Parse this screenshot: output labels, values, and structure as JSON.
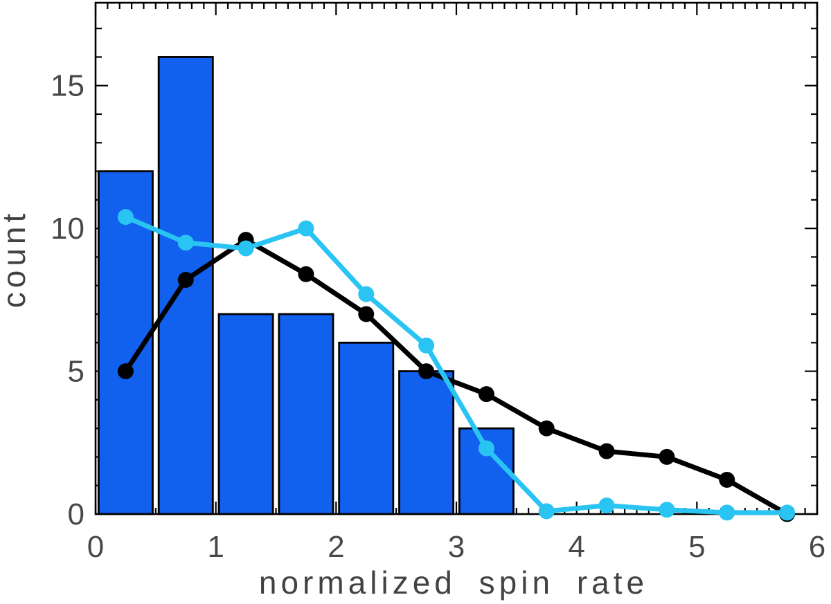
{
  "figure": {
    "background": "#ffffff",
    "frame_color": "#000000",
    "tick_color": "#000000",
    "label_color": "#484848"
  },
  "chart_data": {
    "type": "bar",
    "subtype": "histogram-with-line-overlays",
    "title": "",
    "xlabel": "normalized spin rate",
    "ylabel": "count",
    "xlim": [
      0,
      6
    ],
    "ylim": [
      0,
      17.9
    ],
    "grid": false,
    "legend": "none",
    "x_axis": {
      "major_ticks": [
        0,
        1,
        2,
        3,
        4,
        5,
        6
      ],
      "major_tick_labels": [
        "0",
        "1",
        "2",
        "3",
        "4",
        "5",
        "6"
      ],
      "minor_tick_step": 0.1
    },
    "y_axis": {
      "major_ticks": [
        0,
        5,
        10,
        15
      ],
      "major_tick_labels": [
        "0",
        "5",
        "10",
        "15"
      ],
      "minor_tick_step": 1
    },
    "histogram": {
      "bin_width": 0.5,
      "bin_centers": [
        0.25,
        0.75,
        1.25,
        1.75,
        2.25,
        2.75,
        3.25
      ],
      "counts": [
        12,
        16,
        7,
        7,
        6,
        5,
        3
      ],
      "bar_draw_width": 0.45,
      "fill_color": "#1160ee",
      "edge_color": "#000000"
    },
    "series": [
      {
        "name": "black-curve",
        "color": "#000000",
        "marker": "filled-circle",
        "x": [
          0.25,
          0.75,
          1.25,
          1.75,
          2.25,
          2.75,
          3.25,
          3.75,
          4.25,
          4.75,
          5.25,
          5.75
        ],
        "values": [
          5.0,
          8.2,
          9.6,
          8.4,
          7.0,
          5.0,
          4.2,
          3.0,
          2.2,
          2.0,
          1.2,
          0.0
        ]
      },
      {
        "name": "cyan-curve",
        "color": "#2ac4f3",
        "marker": "filled-circle",
        "x": [
          0.25,
          0.75,
          1.25,
          1.75,
          2.25,
          2.75,
          3.25,
          3.75,
          4.25,
          4.75,
          5.25,
          5.75
        ],
        "values": [
          10.4,
          9.5,
          9.3,
          10.0,
          7.7,
          5.9,
          2.3,
          0.1,
          0.3,
          0.15,
          0.05,
          0.05
        ]
      }
    ]
  }
}
